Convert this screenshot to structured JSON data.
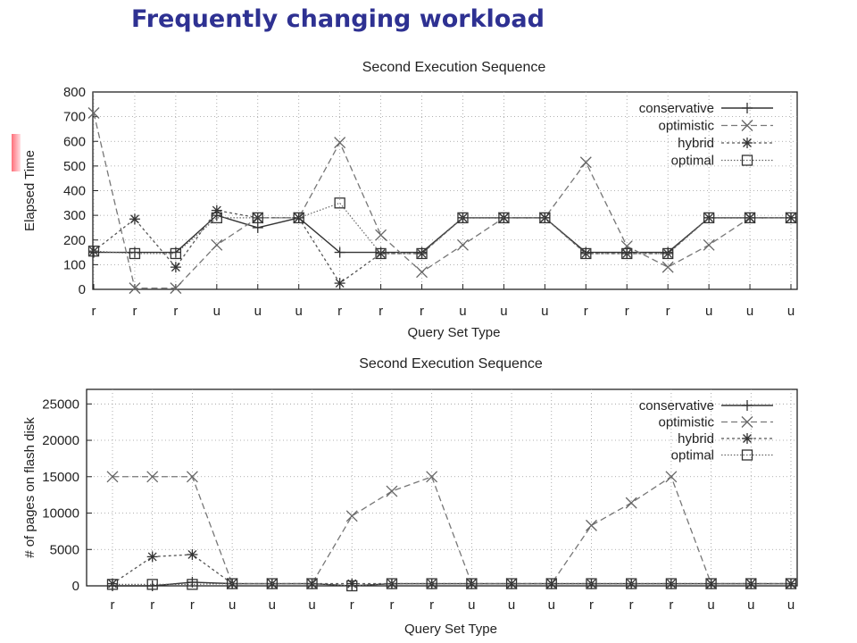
{
  "slide": {
    "title": "Frequently changing workload"
  },
  "colors": {
    "title": "#2e3192",
    "accent": "#ff6f7a"
  },
  "chart_data": [
    {
      "type": "line",
      "title": "Second Execution Sequence",
      "xlabel": "Query Set Type",
      "ylabel": "Elapsed Time",
      "categories": [
        "r",
        "r",
        "r",
        "u",
        "u",
        "u",
        "r",
        "r",
        "r",
        "u",
        "u",
        "u",
        "r",
        "r",
        "r",
        "u",
        "u",
        "u"
      ],
      "ylim": [
        0,
        800
      ],
      "yticks": [
        0,
        100,
        200,
        300,
        400,
        500,
        600,
        700,
        800
      ],
      "ytick_labels": [
        "0",
        "100",
        "200",
        "300",
        "400",
        "500",
        "600",
        "700",
        "800"
      ],
      "grid": true,
      "legend_position": "top-right",
      "series": [
        {
          "name": "conservative",
          "marker": "plus",
          "dash": "solid",
          "values": [
            150,
            150,
            150,
            300,
            250,
            290,
            150,
            150,
            150,
            290,
            290,
            290,
            150,
            150,
            150,
            290,
            290,
            290
          ]
        },
        {
          "name": "optimistic",
          "marker": "x",
          "dash": "dashed",
          "values": [
            715,
            5,
            5,
            180,
            290,
            290,
            595,
            220,
            70,
            180,
            290,
            290,
            515,
            175,
            90,
            180,
            290,
            290
          ]
        },
        {
          "name": "hybrid",
          "marker": "star",
          "dash": "dotted",
          "values": [
            155,
            285,
            90,
            320,
            290,
            290,
            25,
            145,
            145,
            290,
            290,
            290,
            145,
            145,
            145,
            290,
            290,
            290
          ]
        },
        {
          "name": "optimal",
          "marker": "square",
          "dash": "fine-dotted",
          "values": [
            155,
            145,
            145,
            290,
            290,
            290,
            350,
            145,
            145,
            290,
            290,
            290,
            145,
            145,
            145,
            290,
            290,
            290
          ]
        }
      ]
    },
    {
      "type": "line",
      "title": "Second Execution Sequence",
      "xlabel": "Query Set Type",
      "ylabel": "# of pages on flash disk",
      "categories": [
        "r",
        "r",
        "r",
        "u",
        "u",
        "u",
        "r",
        "r",
        "r",
        "u",
        "u",
        "u",
        "r",
        "r",
        "r",
        "u",
        "u",
        "u"
      ],
      "ylim": [
        0,
        27000
      ],
      "yticks": [
        0,
        5000,
        10000,
        15000,
        20000,
        25000
      ],
      "ytick_labels": [
        "0",
        "5000",
        "10000",
        "15000",
        "20000",
        "25000"
      ],
      "grid": true,
      "legend_position": "top-right",
      "series": [
        {
          "name": "conservative",
          "marker": "plus",
          "dash": "solid",
          "values": [
            0,
            0,
            500,
            300,
            300,
            300,
            0,
            300,
            300,
            300,
            300,
            300,
            300,
            300,
            300,
            300,
            300,
            300
          ]
        },
        {
          "name": "optimistic",
          "marker": "x",
          "dash": "dashed",
          "values": [
            15000,
            15000,
            15000,
            300,
            300,
            300,
            9600,
            13000,
            15000,
            300,
            300,
            300,
            8300,
            11400,
            15000,
            300,
            300,
            300
          ]
        },
        {
          "name": "hybrid",
          "marker": "star",
          "dash": "dotted",
          "values": [
            300,
            4000,
            4300,
            300,
            300,
            300,
            300,
            300,
            300,
            300,
            300,
            300,
            300,
            300,
            300,
            300,
            300,
            300
          ]
        },
        {
          "name": "optimal",
          "marker": "square",
          "dash": "fine-dotted",
          "values": [
            200,
            200,
            200,
            300,
            300,
            300,
            0,
            300,
            300,
            300,
            300,
            300,
            300,
            300,
            300,
            300,
            300,
            300
          ]
        }
      ]
    }
  ]
}
